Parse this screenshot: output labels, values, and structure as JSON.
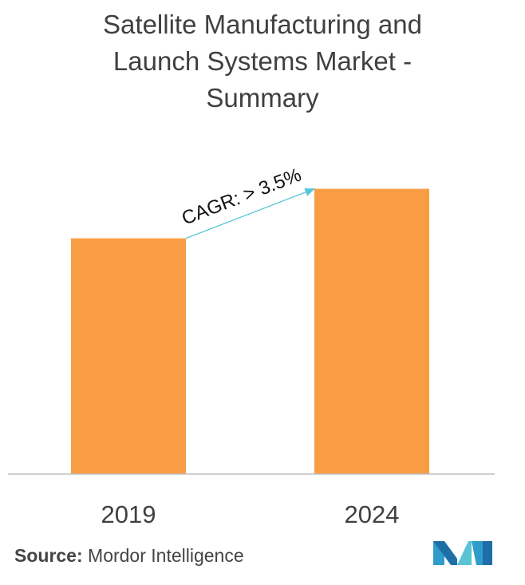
{
  "title_lines": [
    "Satellite Manufacturing and",
    "Launch Systems Market -",
    "Summary"
  ],
  "source": {
    "label": "Source:",
    "text": "Mordor Intelligence"
  },
  "colors": {
    "bar": "#F99D45",
    "arrow": "#58C6D6",
    "axis": "#BFBFBF",
    "text": "#404040"
  },
  "logo_icon": "mordor-intelligence-logo-icon",
  "chart_data": {
    "type": "bar",
    "categories": [
      "2019",
      "2024"
    ],
    "values": [
      1.0,
      1.21
    ],
    "title": "Satellite Manufacturing and Launch Systems Market - Summary",
    "xlabel": "",
    "ylabel": "",
    "ylim": [
      0,
      1.3
    ],
    "grid": false,
    "legend": "none",
    "annotations": [
      {
        "text": "CAGR: > 3.5%",
        "from": "2019",
        "to": "2024"
      }
    ]
  }
}
